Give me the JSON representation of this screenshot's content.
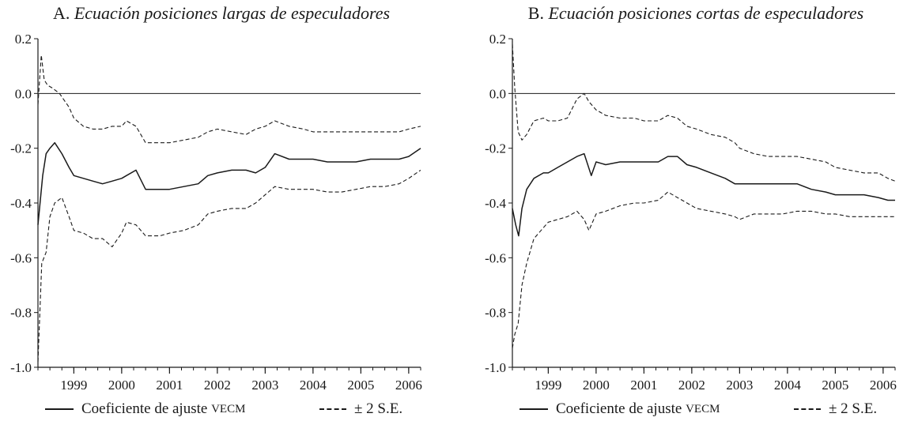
{
  "chart_data": [
    {
      "type": "line",
      "title_letter": "A.",
      "title": "Ecuación posiciones largas de especuladores",
      "xlabel": "",
      "ylabel": "",
      "xlim": [
        1998.25,
        2006.25
      ],
      "ylim": [
        -1.0,
        0.2
      ],
      "y_ticks": [
        0.2,
        0.0,
        -0.2,
        -0.4,
        -0.6,
        -0.8,
        -1.0
      ],
      "y_tick_labels": [
        "0.2",
        "0.0",
        "-0.2",
        "-0.4",
        "-0.6",
        "-0.8",
        "-1.0"
      ],
      "x_ticks": [
        1999,
        2000,
        2001,
        2002,
        2003,
        2004,
        2005,
        2006
      ],
      "x_tick_labels": [
        "1999",
        "2000",
        "2001",
        "2002",
        "2003",
        "2004",
        "2005",
        "2006"
      ],
      "reference_line": 0.0,
      "grid": false,
      "legend_position": "bottom",
      "series": [
        {
          "name": "Coeficiente de ajuste VECM",
          "style": "solid",
          "x": [
            1998.25,
            1998.35,
            1998.42,
            1998.5,
            1998.6,
            1998.75,
            1998.9,
            1999.0,
            1999.2,
            1999.4,
            1999.6,
            1999.8,
            2000.0,
            2000.1,
            2000.3,
            2000.5,
            2000.8,
            2001.0,
            2001.3,
            2001.6,
            2001.8,
            2002.0,
            2002.3,
            2002.6,
            2002.8,
            2003.0,
            2003.2,
            2003.5,
            2003.8,
            2004.0,
            2004.3,
            2004.6,
            2004.9,
            2005.2,
            2005.5,
            2005.8,
            2006.0,
            2006.25
          ],
          "values": [
            -0.48,
            -0.3,
            -0.22,
            -0.2,
            -0.18,
            -0.22,
            -0.27,
            -0.3,
            -0.31,
            -0.32,
            -0.33,
            -0.32,
            -0.31,
            -0.3,
            -0.28,
            -0.35,
            -0.35,
            -0.35,
            -0.34,
            -0.33,
            -0.3,
            -0.29,
            -0.28,
            -0.28,
            -0.29,
            -0.27,
            -0.22,
            -0.24,
            -0.24,
            -0.24,
            -0.25,
            -0.25,
            -0.25,
            -0.24,
            -0.24,
            -0.24,
            -0.23,
            -0.2
          ]
        },
        {
          "name": "±2 S.E. (superior)",
          "style": "dashed",
          "x": [
            1998.25,
            1998.32,
            1998.38,
            1998.45,
            1998.55,
            1998.7,
            1998.9,
            1999.0,
            1999.2,
            1999.4,
            1999.6,
            1999.8,
            2000.0,
            2000.1,
            2000.3,
            2000.5,
            2000.8,
            2001.0,
            2001.3,
            2001.6,
            2001.8,
            2002.0,
            2002.3,
            2002.6,
            2002.8,
            2003.0,
            2003.2,
            2003.5,
            2003.8,
            2004.0,
            2004.3,
            2004.6,
            2004.9,
            2005.2,
            2005.5,
            2005.8,
            2006.0,
            2006.25
          ],
          "values": [
            -0.04,
            0.14,
            0.05,
            0.03,
            0.02,
            0.0,
            -0.05,
            -0.09,
            -0.12,
            -0.13,
            -0.13,
            -0.12,
            -0.12,
            -0.1,
            -0.12,
            -0.18,
            -0.18,
            -0.18,
            -0.17,
            -0.16,
            -0.14,
            -0.13,
            -0.14,
            -0.15,
            -0.13,
            -0.12,
            -0.1,
            -0.12,
            -0.13,
            -0.14,
            -0.14,
            -0.14,
            -0.14,
            -0.14,
            -0.14,
            -0.14,
            -0.13,
            -0.12
          ]
        },
        {
          "name": "±2 S.E. (inferior)",
          "style": "dashed",
          "x": [
            1998.25,
            1998.33,
            1998.42,
            1998.5,
            1998.6,
            1998.75,
            1998.9,
            1999.0,
            1999.2,
            1999.4,
            1999.6,
            1999.8,
            2000.0,
            2000.1,
            2000.3,
            2000.5,
            2000.8,
            2001.0,
            2001.3,
            2001.6,
            2001.8,
            2002.0,
            2002.3,
            2002.6,
            2002.8,
            2003.0,
            2003.2,
            2003.5,
            2003.8,
            2004.0,
            2004.3,
            2004.6,
            2004.9,
            2005.2,
            2005.5,
            2005.8,
            2006.0,
            2006.25
          ],
          "values": [
            -0.98,
            -0.62,
            -0.58,
            -0.45,
            -0.4,
            -0.38,
            -0.45,
            -0.5,
            -0.51,
            -0.53,
            -0.53,
            -0.56,
            -0.51,
            -0.47,
            -0.48,
            -0.52,
            -0.52,
            -0.51,
            -0.5,
            -0.48,
            -0.44,
            -0.43,
            -0.42,
            -0.42,
            -0.4,
            -0.37,
            -0.34,
            -0.35,
            -0.35,
            -0.35,
            -0.36,
            -0.36,
            -0.35,
            -0.34,
            -0.34,
            -0.33,
            -0.31,
            -0.28
          ]
        }
      ]
    },
    {
      "type": "line",
      "title_letter": "B.",
      "title": "Ecuación posiciones cortas de especuladores",
      "xlabel": "",
      "ylabel": "",
      "xlim": [
        1998.25,
        2006.25
      ],
      "ylim": [
        -1.0,
        0.2
      ],
      "y_ticks": [
        0.2,
        0.0,
        -0.2,
        -0.4,
        -0.6,
        -0.8,
        -1.0
      ],
      "y_tick_labels": [
        "0.2",
        "0.0",
        "-0.2",
        "-0.4",
        "-0.6",
        "-0.8",
        "-1.0"
      ],
      "x_ticks": [
        1999,
        2000,
        2001,
        2002,
        2003,
        2004,
        2005,
        2006
      ],
      "x_tick_labels": [
        "1999",
        "2000",
        "2001",
        "2002",
        "2003",
        "2004",
        "2005",
        "2006"
      ],
      "reference_line": 0.0,
      "grid": false,
      "legend_position": "bottom",
      "series": [
        {
          "name": "Coeficiente de ajuste VECM",
          "style": "solid",
          "x": [
            1998.25,
            1998.32,
            1998.38,
            1998.45,
            1998.55,
            1998.7,
            1998.9,
            1999.0,
            1999.2,
            1999.4,
            1999.6,
            1999.75,
            1999.9,
            2000.0,
            2000.2,
            2000.5,
            2000.8,
            2001.0,
            2001.3,
            2001.5,
            2001.7,
            2001.9,
            2002.1,
            2002.4,
            2002.7,
            2002.9,
            2003.0,
            2003.3,
            2003.6,
            2003.9,
            2004.2,
            2004.5,
            2004.8,
            2005.0,
            2005.3,
            2005.6,
            2005.9,
            2006.1,
            2006.25
          ],
          "values": [
            -0.42,
            -0.48,
            -0.52,
            -0.42,
            -0.35,
            -0.31,
            -0.29,
            -0.29,
            -0.27,
            -0.25,
            -0.23,
            -0.22,
            -0.3,
            -0.25,
            -0.26,
            -0.25,
            -0.25,
            -0.25,
            -0.25,
            -0.23,
            -0.23,
            -0.26,
            -0.27,
            -0.29,
            -0.31,
            -0.33,
            -0.33,
            -0.33,
            -0.33,
            -0.33,
            -0.33,
            -0.35,
            -0.36,
            -0.37,
            -0.37,
            -0.37,
            -0.38,
            -0.39,
            -0.39
          ]
        },
        {
          "name": "±2 S.E. (superior)",
          "style": "dashed",
          "x": [
            1998.25,
            1998.3,
            1998.37,
            1998.45,
            1998.55,
            1998.7,
            1998.9,
            1999.0,
            1999.2,
            1999.4,
            1999.6,
            1999.75,
            1999.85,
            2000.0,
            2000.2,
            2000.5,
            2000.8,
            2001.0,
            2001.3,
            2001.5,
            2001.7,
            2001.9,
            2002.1,
            2002.4,
            2002.7,
            2002.9,
            2003.0,
            2003.3,
            2003.6,
            2003.9,
            2004.2,
            2004.5,
            2004.8,
            2005.0,
            2005.3,
            2005.6,
            2005.9,
            2006.1,
            2006.25
          ],
          "values": [
            0.18,
            0.02,
            -0.14,
            -0.17,
            -0.15,
            -0.1,
            -0.09,
            -0.1,
            -0.1,
            -0.09,
            -0.02,
            0.0,
            -0.03,
            -0.06,
            -0.08,
            -0.09,
            -0.09,
            -0.1,
            -0.1,
            -0.08,
            -0.09,
            -0.12,
            -0.13,
            -0.15,
            -0.16,
            -0.18,
            -0.2,
            -0.22,
            -0.23,
            -0.23,
            -0.23,
            -0.24,
            -0.25,
            -0.27,
            -0.28,
            -0.29,
            -0.29,
            -0.31,
            -0.32
          ]
        },
        {
          "name": "±2 S.E. (inferior)",
          "style": "dashed",
          "x": [
            1998.25,
            1998.3,
            1998.37,
            1998.45,
            1998.55,
            1998.7,
            1998.9,
            1999.0,
            1999.2,
            1999.4,
            1999.6,
            1999.75,
            1999.85,
            2000.0,
            2000.2,
            2000.5,
            2000.8,
            2001.0,
            2001.3,
            2001.5,
            2001.7,
            2001.9,
            2002.1,
            2002.4,
            2002.7,
            2002.9,
            2003.0,
            2003.3,
            2003.6,
            2003.9,
            2004.2,
            2004.5,
            2004.8,
            2005.0,
            2005.3,
            2005.6,
            2005.9,
            2006.1,
            2006.25
          ],
          "values": [
            -0.93,
            -0.88,
            -0.84,
            -0.7,
            -0.62,
            -0.53,
            -0.49,
            -0.47,
            -0.46,
            -0.45,
            -0.43,
            -0.46,
            -0.5,
            -0.44,
            -0.43,
            -0.41,
            -0.4,
            -0.4,
            -0.39,
            -0.36,
            -0.38,
            -0.4,
            -0.42,
            -0.43,
            -0.44,
            -0.45,
            -0.46,
            -0.44,
            -0.44,
            -0.44,
            -0.43,
            -0.43,
            -0.44,
            -0.44,
            -0.45,
            -0.45,
            -0.45,
            -0.45,
            -0.45
          ]
        }
      ]
    }
  ],
  "legend": {
    "solid_label": "Coeficiente de ajuste",
    "solid_label_sc": "VECM",
    "dashed_label": "± 2 S.E."
  }
}
